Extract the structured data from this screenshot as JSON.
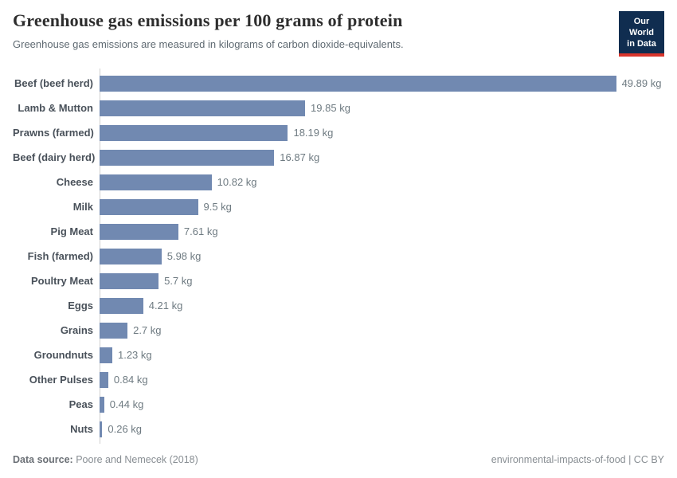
{
  "header": {
    "title": "Greenhouse gas emissions per 100 grams of protein",
    "subtitle": "Greenhouse gas emissions are measured in kilograms of carbon dioxide-equivalents.",
    "logo": {
      "line1": "Our World",
      "line2": "in Data"
    }
  },
  "chart_data": {
    "type": "bar",
    "orientation": "horizontal",
    "title": "Greenhouse gas emissions per 100 grams of protein",
    "subtitle": "Greenhouse gas emissions are measured in kilograms of carbon dioxide-equivalents.",
    "categories": [
      "Beef (beef herd)",
      "Lamb & Mutton",
      "Prawns (farmed)",
      "Beef (dairy herd)",
      "Cheese",
      "Milk",
      "Pig Meat",
      "Fish (farmed)",
      "Poultry Meat",
      "Eggs",
      "Grains",
      "Groundnuts",
      "Other Pulses",
      "Peas",
      "Nuts"
    ],
    "values": [
      49.89,
      19.85,
      18.19,
      16.87,
      10.82,
      9.5,
      7.61,
      5.98,
      5.7,
      4.21,
      2.7,
      1.23,
      0.84,
      0.44,
      0.26
    ],
    "value_labels": [
      "49.89 kg",
      "19.85 kg",
      "18.19 kg",
      "16.87 kg",
      "10.82 kg",
      "9.5 kg",
      "7.61 kg",
      "5.98 kg",
      "5.7 kg",
      "4.21 kg",
      "2.7 kg",
      "1.23 kg",
      "0.84 kg",
      "0.44 kg",
      "0.26 kg"
    ],
    "unit": "kg",
    "xlim": [
      0,
      50
    ],
    "grid": false,
    "legend": "none",
    "bar_color": "#7189b1"
  },
  "footer": {
    "source_label": "Data source:",
    "source_value": "Poore and Nemecek (2018)",
    "right_text": "environmental-impacts-of-food | CC BY"
  },
  "colors": {
    "bar": "#7189b1",
    "logo_background": "#102d50",
    "logo_accent": "#d8352c",
    "axis_line": "#cfcfcf"
  }
}
